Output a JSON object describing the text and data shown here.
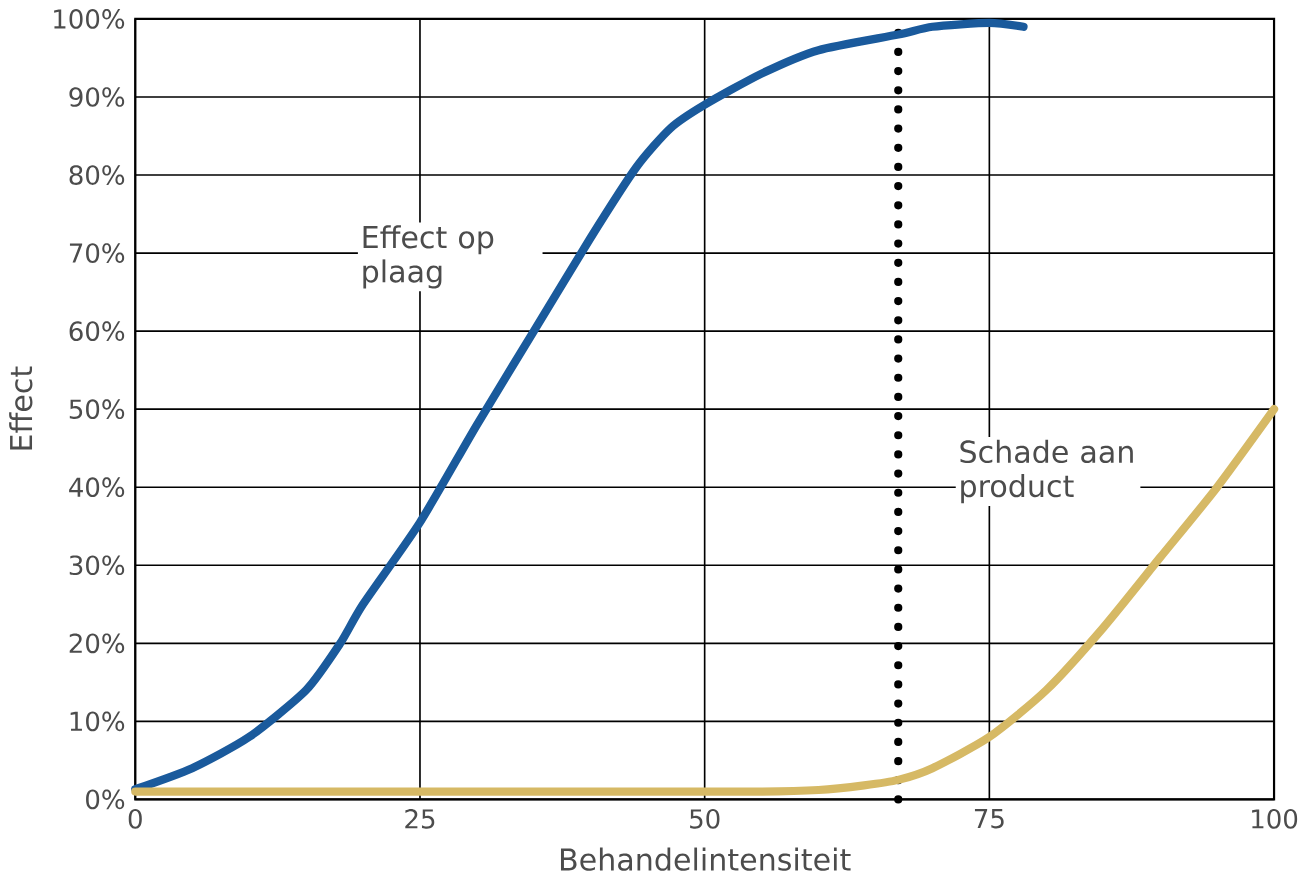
{
  "chart_data": {
    "type": "line",
    "xlabel": "Behandelintensiteit",
    "ylabel": "Effect",
    "xlim": [
      0,
      100
    ],
    "ylim": [
      0,
      100
    ],
    "xticks": [
      0,
      25,
      50,
      75,
      100
    ],
    "yticks": [
      {
        "value": 0,
        "label": "0%"
      },
      {
        "value": 10,
        "label": "10%"
      },
      {
        "value": 20,
        "label": "20%"
      },
      {
        "value": 30,
        "label": "30%"
      },
      {
        "value": 40,
        "label": "40%"
      },
      {
        "value": 50,
        "label": "50%"
      },
      {
        "value": 60,
        "label": "60%"
      },
      {
        "value": 70,
        "label": "70%"
      },
      {
        "value": 80,
        "label": "80%"
      },
      {
        "value": 90,
        "label": "90%"
      },
      {
        "value": 100,
        "label": "100%"
      }
    ],
    "grid": true,
    "line_style": "solid",
    "series": [
      {
        "color": "#1a5a9c",
        "x": [
          0,
          5,
          10,
          15,
          18,
          20,
          25,
          30,
          35,
          40,
          44,
          47,
          50,
          55,
          60,
          67,
          70,
          75,
          78
        ],
        "values": [
          1.3,
          4,
          8,
          14,
          20,
          25,
          35.5,
          48,
          60,
          72,
          81,
          86,
          89,
          93,
          96,
          98,
          99,
          99.5,
          99
        ]
      },
      {
        "color": "#d6b965",
        "x": [
          0,
          20,
          40,
          55,
          60,
          64,
          67,
          70,
          75,
          80,
          85,
          90,
          95,
          100
        ],
        "values": [
          1,
          1,
          1,
          1,
          1.2,
          1.8,
          2.5,
          4,
          8,
          14,
          22,
          31,
          40,
          50
        ]
      }
    ],
    "ref_lines": [
      {
        "axis": "x",
        "value": 67,
        "color": "#000000",
        "line_style": "dotted"
      }
    ],
    "annotations": [
      "Effect op plaag",
      "Schade aan product"
    ]
  }
}
